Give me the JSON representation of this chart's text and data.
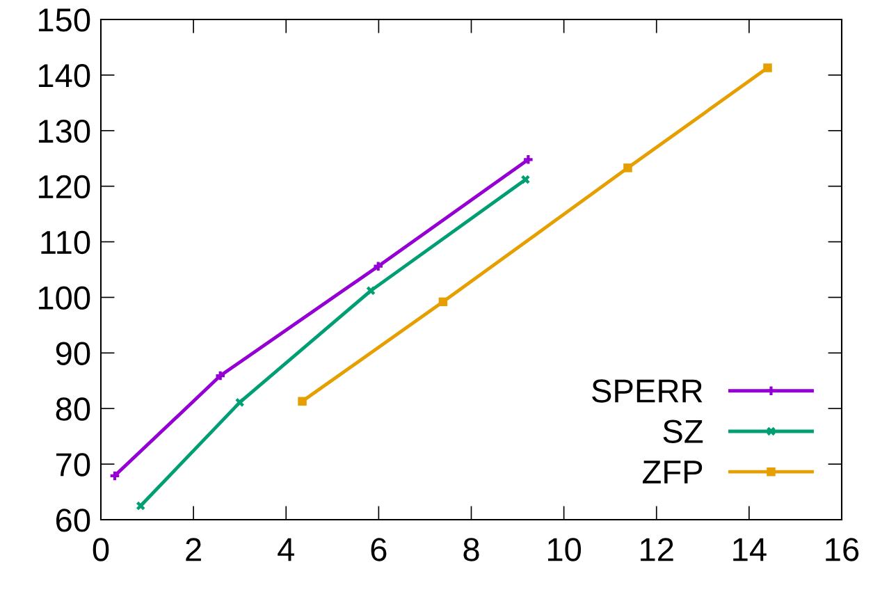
{
  "chart_data": {
    "type": "line",
    "xlim": [
      0,
      16
    ],
    "ylim": [
      60,
      150
    ],
    "xticks": [
      0,
      2,
      4,
      6,
      8,
      10,
      12,
      14,
      16
    ],
    "yticks": [
      60,
      70,
      80,
      90,
      100,
      110,
      120,
      130,
      140,
      150
    ],
    "grid": false,
    "legend": "bottom right",
    "line_style": "solid",
    "series": [
      {
        "name": "SPERR",
        "color": "#9400d3",
        "marker": "plus",
        "x": [
          0.3,
          2.58,
          5.99,
          9.23
        ],
        "values": [
          67.9,
          85.9,
          105.6,
          124.8
        ]
      },
      {
        "name": "SZ",
        "color": "#009e73",
        "marker": "cross",
        "x": [
          0.86,
          3.0,
          5.83,
          9.17
        ],
        "values": [
          62.5,
          81.1,
          101.2,
          121.2
        ]
      },
      {
        "name": "ZFP",
        "color": "#e69f00",
        "marker": "square",
        "x": [
          4.35,
          7.39,
          11.38,
          14.4
        ],
        "values": [
          81.3,
          99.2,
          123.3,
          141.3
        ]
      }
    ]
  }
}
